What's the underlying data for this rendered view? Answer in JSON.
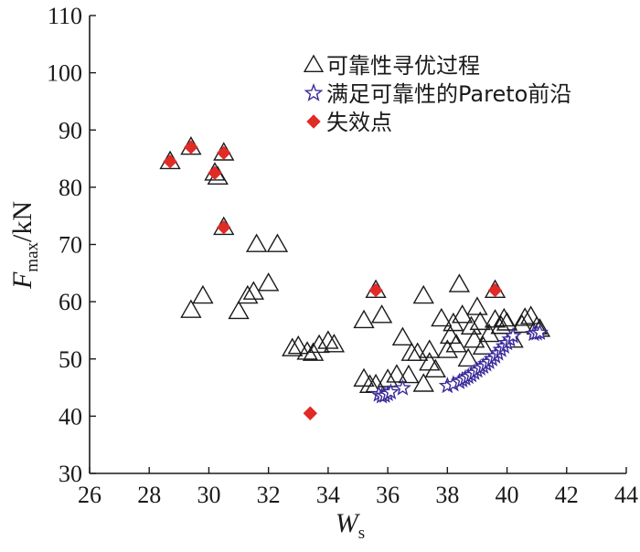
{
  "chart_data": {
    "type": "scatter",
    "xlabel": "W",
    "xlabel_sub": "s",
    "ylabel": "F",
    "ylabel_sub": "max",
    "ylabel_unit": "/kN",
    "xlim": [
      26,
      44
    ],
    "ylim": [
      30,
      110
    ],
    "xticks": [
      "26",
      "28",
      "30",
      "32",
      "34",
      "36",
      "38",
      "40",
      "42",
      "44"
    ],
    "yticks": [
      "30",
      "40",
      "50",
      "60",
      "70",
      "80",
      "90",
      "100",
      "110"
    ],
    "grid": false,
    "legend_position": "top-right",
    "series": [
      {
        "name": "可靠性寻优过程",
        "marker": "triangle-open",
        "color": "#1a1a1a",
        "points": [
          [
            28.7,
            84.5
          ],
          [
            29.4,
            87
          ],
          [
            30.2,
            82.5
          ],
          [
            30.3,
            81.8
          ],
          [
            30.5,
            86
          ],
          [
            30.5,
            73
          ],
          [
            29.4,
            58.5
          ],
          [
            29.8,
            61
          ],
          [
            31.0,
            58.3
          ],
          [
            31.3,
            61
          ],
          [
            31.5,
            61.7
          ],
          [
            31.6,
            70
          ],
          [
            32.0,
            63.2
          ],
          [
            32.3,
            70
          ],
          [
            32.8,
            51.8
          ],
          [
            33.0,
            52.2
          ],
          [
            33.3,
            51.2
          ],
          [
            33.5,
            51
          ],
          [
            33.7,
            52.4
          ],
          [
            34.0,
            53.1
          ],
          [
            34.2,
            52.5
          ],
          [
            35.2,
            56.7
          ],
          [
            35.2,
            46.5
          ],
          [
            35.4,
            45.4
          ],
          [
            35.6,
            45.5
          ],
          [
            35.6,
            62
          ],
          [
            35.8,
            57.6
          ],
          [
            36.0,
            46.4
          ],
          [
            36.3,
            47.2
          ],
          [
            36.5,
            53.7
          ],
          [
            36.7,
            47.1
          ],
          [
            36.8,
            51
          ],
          [
            37.0,
            51
          ],
          [
            37.2,
            61
          ],
          [
            37.2,
            45.6
          ],
          [
            37.4,
            51.5
          ],
          [
            37.4,
            49.3
          ],
          [
            37.6,
            48.1
          ],
          [
            37.8,
            57
          ],
          [
            38.0,
            51.5
          ],
          [
            38.1,
            54
          ],
          [
            38.2,
            56.2
          ],
          [
            38.3,
            52.5
          ],
          [
            38.4,
            63
          ],
          [
            38.5,
            57.6
          ],
          [
            38.7,
            50
          ],
          [
            38.8,
            55.6
          ],
          [
            38.9,
            53.3
          ],
          [
            39.0,
            59
          ],
          [
            39.1,
            56.4
          ],
          [
            39.2,
            52.1
          ],
          [
            39.4,
            54.3
          ],
          [
            39.6,
            56.8
          ],
          [
            39.6,
            62
          ],
          [
            39.8,
            55.7
          ],
          [
            39.9,
            57
          ],
          [
            40.0,
            56.3
          ],
          [
            40.2,
            53.3
          ],
          [
            40.5,
            55.9
          ],
          [
            40.6,
            57.1
          ],
          [
            40.8,
            57.4
          ],
          [
            41.0,
            55.6
          ],
          [
            41.1,
            55.2
          ]
        ]
      },
      {
        "name": "满足可靠性的Pareto前沿",
        "marker": "star-open",
        "color": "#3b2b9a",
        "points": [
          [
            35.7,
            43.8
          ],
          [
            35.8,
            43.5
          ],
          [
            35.9,
            43.6
          ],
          [
            36.0,
            43.9
          ],
          [
            36.1,
            44.2
          ],
          [
            36.5,
            44.9
          ],
          [
            38.0,
            45.3
          ],
          [
            38.2,
            45.6
          ],
          [
            38.4,
            46.0
          ],
          [
            38.5,
            46.3
          ],
          [
            38.6,
            46.6
          ],
          [
            38.7,
            46.9
          ],
          [
            38.8,
            47.2
          ],
          [
            38.9,
            47.6
          ],
          [
            39.0,
            48.0
          ],
          [
            39.1,
            48.4
          ],
          [
            39.2,
            48.7
          ],
          [
            39.3,
            49.1
          ],
          [
            39.4,
            49.5
          ],
          [
            39.5,
            50.0
          ],
          [
            39.6,
            50.5
          ],
          [
            39.7,
            51.0
          ],
          [
            39.8,
            51.6
          ],
          [
            39.9,
            52.2
          ],
          [
            40.0,
            52.8
          ],
          [
            40.1,
            53.4
          ],
          [
            40.2,
            54.0
          ],
          [
            40.9,
            54.4
          ],
          [
            41.0,
            54.5
          ],
          [
            41.1,
            54.6
          ]
        ]
      },
      {
        "name": "失效点",
        "marker": "diamond-filled",
        "color": "#e02b27",
        "points": [
          [
            28.7,
            84.5
          ],
          [
            29.4,
            87
          ],
          [
            30.2,
            82.5
          ],
          [
            30.5,
            86
          ],
          [
            30.5,
            73
          ],
          [
            35.6,
            62
          ],
          [
            39.6,
            62
          ],
          [
            33.4,
            40.5
          ]
        ]
      }
    ]
  }
}
